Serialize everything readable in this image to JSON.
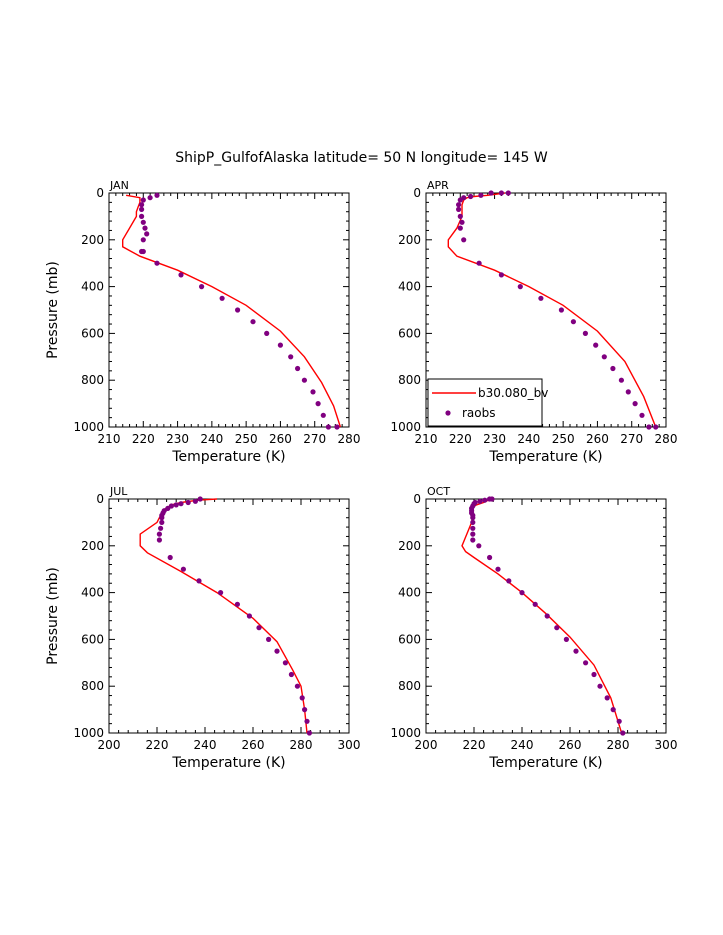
{
  "title": "ShipP_GulfofAlaska  latitude= 50 N longitude= 145 W",
  "colors": {
    "model": "#ff0000",
    "obs": "#800080",
    "axis": "#000000"
  },
  "legend": {
    "model_label": "b30.080_bv",
    "obs_label": "raobs"
  },
  "chart_data": [
    {
      "type": "line",
      "panel": "JAN",
      "xlabel": "Temperature (K)",
      "ylabel": "Pressure (mb)",
      "xlim": [
        210,
        280
      ],
      "ylim": [
        1000,
        0
      ],
      "xticks": [
        210,
        220,
        230,
        240,
        250,
        260,
        270,
        280
      ],
      "yticks": [
        0,
        200,
        400,
        600,
        800,
        1000
      ],
      "series": [
        {
          "name": "b30.080_bv",
          "kind": "line",
          "x": [
            215,
            219,
            219,
            218.5,
            218,
            218,
            214,
            214,
            219,
            230,
            240,
            250,
            260,
            267,
            272,
            275.5,
            277.5
          ],
          "y": [
            10,
            20,
            40,
            60,
            80,
            100,
            200,
            230,
            270,
            330,
            400,
            480,
            590,
            700,
            810,
            910,
            1000
          ]
        },
        {
          "name": "raobs",
          "kind": "points",
          "x": [
            224,
            222,
            220,
            219.5,
            219.5,
            219.5,
            220,
            220.5,
            221,
            220,
            219.5,
            220,
            224,
            231,
            237,
            243,
            247.5,
            252,
            256,
            260,
            263,
            265,
            267,
            269.5,
            271,
            272.5,
            274,
            276.5
          ],
          "y": [
            10,
            20,
            30,
            50,
            70,
            100,
            125,
            150,
            175,
            200,
            250,
            250,
            300,
            350,
            400,
            450,
            500,
            550,
            600,
            650,
            700,
            750,
            800,
            850,
            900,
            950,
            1000,
            1000
          ]
        }
      ]
    },
    {
      "type": "line",
      "panel": "APR",
      "xlabel": "Temperature (K)",
      "ylabel": "",
      "xlim": [
        210,
        280
      ],
      "ylim": [
        1000,
        0
      ],
      "xticks": [
        210,
        220,
        230,
        240,
        250,
        260,
        270,
        280
      ],
      "yticks": [
        0,
        200,
        400,
        600,
        800,
        1000
      ],
      "legend_position": "bottom-left",
      "series": [
        {
          "name": "b30.080_bv",
          "kind": "line",
          "x": [
            233,
            228,
            224,
            222,
            221,
            220.5,
            220.5,
            219,
            216.5,
            216.5,
            219,
            230,
            240,
            250,
            260,
            268,
            273.5,
            277
          ],
          "y": [
            0,
            10,
            15,
            20,
            30,
            50,
            100,
            150,
            200,
            230,
            270,
            330,
            400,
            480,
            590,
            720,
            870,
            1000
          ]
        },
        {
          "name": "raobs",
          "kind": "points",
          "x": [
            234,
            232,
            229,
            226,
            223,
            221,
            220,
            219.5,
            219.5,
            220,
            220.5,
            220,
            221,
            225.5,
            232,
            237.5,
            243.5,
            249.5,
            253,
            256.5,
            259.5,
            262,
            264.5,
            267,
            269,
            271,
            273,
            275,
            277
          ],
          "y": [
            0,
            0,
            0,
            10,
            15,
            20,
            30,
            50,
            70,
            100,
            125,
            150,
            200,
            300,
            350,
            400,
            450,
            500,
            550,
            600,
            650,
            700,
            750,
            800,
            850,
            900,
            950,
            1000,
            1000
          ]
        }
      ]
    },
    {
      "type": "line",
      "panel": "JUL",
      "xlabel": "Temperature (K)",
      "ylabel": "Pressure (mb)",
      "xlim": [
        200,
        300
      ],
      "ylim": [
        1000,
        0
      ],
      "xticks": [
        200,
        220,
        240,
        260,
        280,
        300
      ],
      "yticks": [
        0,
        200,
        400,
        600,
        800,
        1000
      ],
      "series": [
        {
          "name": "b30.080_bv",
          "kind": "line",
          "x": [
            245,
            237,
            230,
            226,
            223,
            222,
            221,
            220,
            213,
            213,
            216,
            230,
            245,
            260,
            270,
            276.5,
            280,
            281.5,
            282.5
          ],
          "y": [
            0,
            5,
            15,
            25,
            45,
            60,
            80,
            100,
            150,
            200,
            230,
            310,
            400,
            510,
            610,
            730,
            800,
            900,
            1000
          ]
        },
        {
          "name": "raobs",
          "kind": "points",
          "x": [
            238,
            236,
            233,
            230,
            228,
            226,
            224.5,
            223,
            222.5,
            222,
            222,
            222,
            221.5,
            221,
            221,
            225.5,
            231,
            237.5,
            246.5,
            253.5,
            258.5,
            262.5,
            266.5,
            270,
            273.5,
            276,
            278.5,
            280.5,
            281.5,
            282.5,
            283.5
          ],
          "y": [
            0,
            10,
            15,
            20,
            25,
            30,
            40,
            50,
            60,
            70,
            80,
            100,
            125,
            150,
            175,
            250,
            300,
            350,
            400,
            450,
            500,
            550,
            600,
            650,
            700,
            750,
            800,
            850,
            900,
            950,
            1000
          ]
        }
      ]
    },
    {
      "type": "line",
      "panel": "OCT",
      "xlabel": "Temperature (K)",
      "ylabel": "",
      "xlim": [
        200,
        300
      ],
      "ylim": [
        1000,
        0
      ],
      "xticks": [
        200,
        220,
        240,
        260,
        280,
        300
      ],
      "yticks": [
        0,
        200,
        400,
        600,
        800,
        1000
      ],
      "series": [
        {
          "name": "b30.080_bv",
          "kind": "line",
          "x": [
            227,
            224,
            221,
            219.5,
            219,
            219.5,
            219,
            217,
            215,
            216.5,
            220,
            230,
            240,
            250,
            260,
            270,
            277,
            281.5
          ],
          "y": [
            0,
            15,
            25,
            35,
            50,
            70,
            100,
            150,
            200,
            225,
            250,
            320,
            400,
            490,
            590,
            710,
            850,
            1000
          ]
        },
        {
          "name": "raobs",
          "kind": "points",
          "x": [
            227.5,
            226.5,
            224.5,
            222.5,
            220.5,
            220,
            219.5,
            219,
            219,
            219,
            219.5,
            219.5,
            219.5,
            219.5,
            219.5,
            219.5,
            222,
            226.5,
            230,
            234.5,
            240,
            245.5,
            250.5,
            254.5,
            258.5,
            262.5,
            266.5,
            270,
            272.5,
            275.5,
            278,
            280.5,
            282
          ],
          "y": [
            0,
            0,
            5,
            10,
            15,
            20,
            30,
            40,
            50,
            60,
            70,
            80,
            100,
            125,
            150,
            175,
            200,
            250,
            300,
            350,
            400,
            450,
            500,
            550,
            600,
            650,
            700,
            750,
            800,
            850,
            900,
            950,
            1000
          ]
        }
      ]
    }
  ]
}
